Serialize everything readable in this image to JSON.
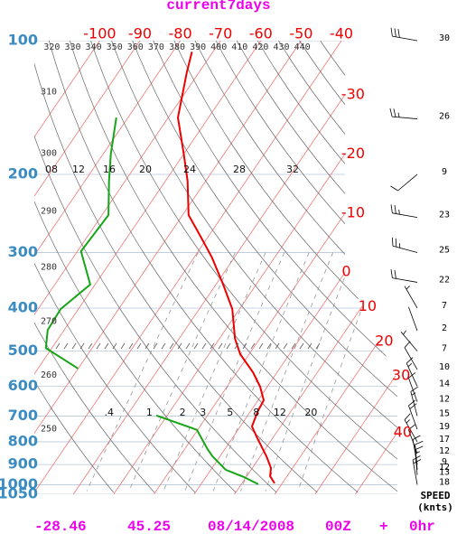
{
  "chart_data": {
    "type": "skewt",
    "title": "current7days",
    "footer": [
      "-28.46",
      "45.25",
      "08/14/2008",
      "00Z",
      "+",
      "0hr"
    ],
    "y_scale": "log",
    "ylim": [
      100,
      1050
    ],
    "yticks": [
      100,
      200,
      300,
      400,
      500,
      600,
      700,
      800,
      900,
      1000,
      1050
    ],
    "temperature_ticks": [
      -100,
      -90,
      -80,
      -70,
      -60,
      -50,
      -40,
      -30,
      -20,
      -10,
      0,
      10,
      20,
      30,
      40
    ],
    "theta_ticks": [
      250,
      260,
      270,
      280,
      290,
      300,
      310,
      320,
      330,
      340,
      350,
      360,
      370,
      380,
      390,
      400,
      410,
      420,
      430,
      440
    ],
    "mixing_ratio_ticks": [
      {
        "value": 0.4,
        "label": ".4"
      },
      1,
      2,
      3,
      5,
      8,
      12,
      20
    ],
    "upper_labels": [
      "08",
      "12",
      "16",
      "20",
      "24",
      "28",
      "32"
    ],
    "series": [
      {
        "color": "#ee0000",
        "pressure": [
          106,
          118,
          149,
          180,
          207,
          247,
          276,
          308,
          354,
          402,
          469,
          508,
          558,
          601,
          645,
          685,
          739,
          785,
          862,
          916,
          956,
          992
        ],
        "values": [
          -75.2,
          -73.0,
          -67.6,
          -60.0,
          -54.5,
          -48.5,
          -41.9,
          -35.5,
          -28.2,
          -21.8,
          -16.1,
          -12.2,
          -6.0,
          -1.8,
          1.4,
          1.8,
          2.9,
          6.2,
          11.5,
          14.6,
          15.8,
          18.1
        ]
      },
      {
        "color": "#16a516",
        "pressure": [
          149,
          180,
          207,
          247,
          298,
          354,
          402,
          448,
          492,
          547,
          620,
          698,
          752,
          831,
          862,
          925,
          960,
          997
        ],
        "values": [
          -82.9,
          -78.1,
          -74.0,
          -68.4,
          -69.1,
          -61.2,
          -64.4,
          -64.1,
          -61.5,
          -50.1,
          null,
          -22.7,
          -10.2,
          -4.3,
          -1.9,
          3.7,
          9.4,
          14.2
        ]
      }
    ],
    "wind": {
      "color": "#000000",
      "pressure": [
        100,
        150,
        200,
        250,
        300,
        350,
        400,
        450,
        500,
        550,
        600,
        650,
        700,
        750,
        800,
        850,
        900,
        925,
        950,
        1000
      ],
      "speed": [
        30,
        26,
        9,
        23,
        25,
        22,
        7,
        2,
        7,
        10,
        14,
        12,
        15,
        19,
        17,
        12,
        9,
        12,
        13,
        18
      ],
      "direction": [
        280,
        275,
        230,
        280,
        285,
        280,
        330,
        340,
        320,
        330,
        335,
        340,
        345,
        340,
        330,
        340,
        350,
        355,
        355,
        350
      ]
    },
    "speed_label": "SPEED",
    "speed_unit": "(knts)"
  }
}
